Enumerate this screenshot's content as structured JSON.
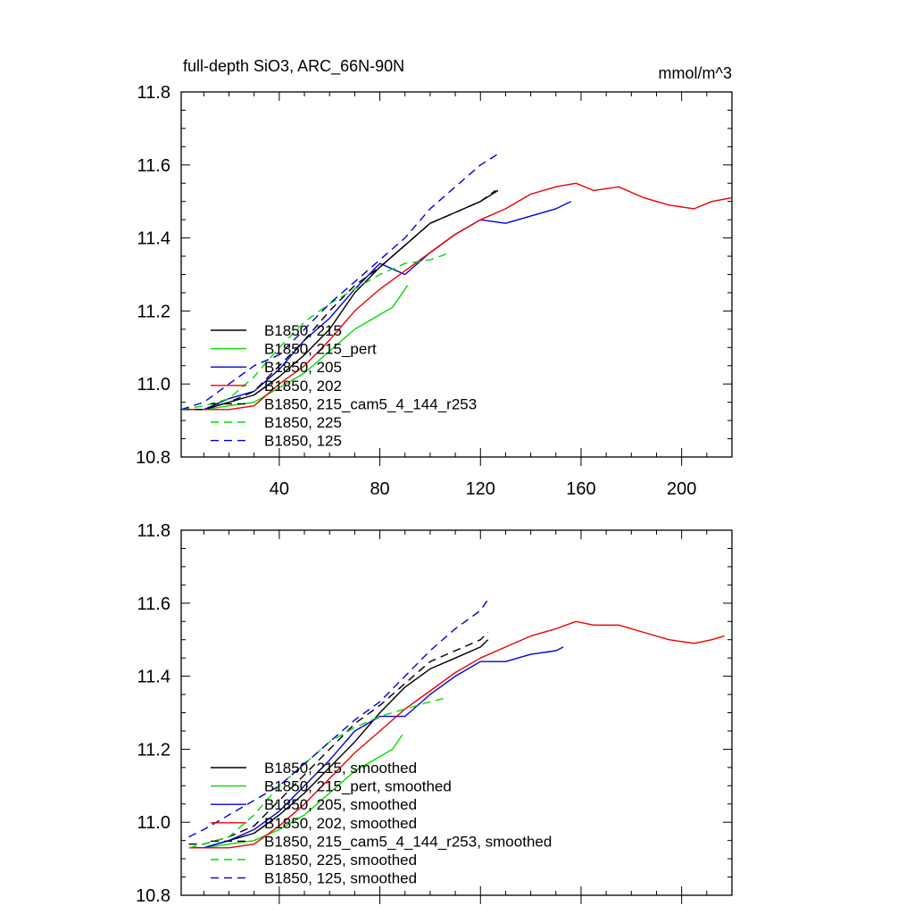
{
  "figure": {
    "title": "full-depth SiO3, ARC_66N-90N",
    "units": "mmol/m^3"
  },
  "chart_data": [
    {
      "type": "line",
      "title": "full-depth SiO3, ARC_66N-90N",
      "units": "mmol/m^3",
      "xlabel": "",
      "ylabel": "",
      "xlim": [
        1,
        220
      ],
      "ylim": [
        10.8,
        11.8
      ],
      "xticks": [
        40,
        80,
        120,
        160,
        200
      ],
      "yticks": [
        10.8,
        11.0,
        11.2,
        11.4,
        11.6,
        11.8
      ],
      "show_x_tick_labels": true,
      "grid": false,
      "legend_position": "lower-left",
      "series": [
        {
          "name": "B1850, 215",
          "color": "#000000",
          "dash": false,
          "x": [
            1,
            10,
            20,
            30,
            40,
            50,
            60,
            70,
            80,
            90,
            100,
            110,
            120,
            127
          ],
          "y": [
            10.93,
            10.93,
            10.95,
            10.97,
            11.02,
            11.08,
            11.15,
            11.25,
            11.32,
            11.38,
            11.44,
            11.47,
            11.5,
            11.53
          ]
        },
        {
          "name": "B1850, 215_pert",
          "color": "#00dd00",
          "dash": false,
          "x": [
            1,
            10,
            20,
            30,
            40,
            50,
            60,
            70,
            80,
            85,
            91
          ],
          "y": [
            10.93,
            10.93,
            10.94,
            10.95,
            10.99,
            11.03,
            11.09,
            11.15,
            11.19,
            11.21,
            11.27
          ]
        },
        {
          "name": "B1850, 205",
          "color": "#0000dd",
          "dash": false,
          "x": [
            1,
            10,
            20,
            30,
            40,
            50,
            60,
            70,
            80,
            90,
            100,
            110,
            120,
            130,
            140,
            150,
            156
          ],
          "y": [
            10.93,
            10.93,
            10.96,
            10.98,
            11.04,
            11.12,
            11.18,
            11.26,
            11.33,
            11.3,
            11.36,
            11.41,
            11.45,
            11.44,
            11.46,
            11.48,
            11.5
          ]
        },
        {
          "name": "B1850, 202",
          "color": "#ee0000",
          "dash": false,
          "x": [
            1,
            10,
            20,
            30,
            40,
            50,
            60,
            70,
            80,
            90,
            100,
            110,
            120,
            130,
            140,
            150,
            158,
            165,
            175,
            185,
            195,
            205,
            212,
            220
          ],
          "y": [
            10.93,
            10.93,
            10.93,
            10.94,
            11.0,
            11.05,
            11.12,
            11.2,
            11.26,
            11.31,
            11.36,
            11.41,
            11.45,
            11.48,
            11.52,
            11.54,
            11.55,
            11.53,
            11.54,
            11.51,
            11.49,
            11.48,
            11.5,
            11.51
          ]
        },
        {
          "name": "B1850, 215_cam5_4_144_r253",
          "color": "#000000",
          "dash": true,
          "x": [
            1,
            10,
            20,
            30,
            40,
            50,
            60,
            70,
            80,
            90,
            100,
            110,
            120,
            126
          ],
          "y": [
            10.93,
            10.93,
            10.95,
            10.98,
            11.05,
            11.12,
            11.2,
            11.27,
            11.32,
            11.38,
            11.44,
            11.47,
            11.5,
            11.53
          ]
        },
        {
          "name": "B1850, 225",
          "color": "#00dd00",
          "dash": true,
          "x": [
            1,
            10,
            20,
            30,
            40,
            50,
            60,
            70,
            80,
            90,
            100,
            108
          ],
          "y": [
            10.93,
            10.94,
            10.96,
            11.02,
            11.1,
            11.17,
            11.22,
            11.26,
            11.3,
            11.33,
            11.34,
            11.36
          ]
        },
        {
          "name": "B1850, 125",
          "color": "#0000dd",
          "dash": true,
          "x": [
            1,
            10,
            20,
            30,
            40,
            50,
            60,
            70,
            80,
            90,
            100,
            110,
            120,
            127
          ],
          "y": [
            10.93,
            10.95,
            11.0,
            11.05,
            11.08,
            11.15,
            11.22,
            11.28,
            11.34,
            11.4,
            11.48,
            11.54,
            11.6,
            11.63
          ]
        }
      ]
    },
    {
      "type": "line",
      "xlabel": "",
      "ylabel": "",
      "xlim": [
        1,
        220
      ],
      "ylim": [
        10.8,
        11.8
      ],
      "xticks": [
        40,
        80,
        120,
        160,
        200
      ],
      "yticks": [
        10.8,
        11.0,
        11.2,
        11.4,
        11.6,
        11.8
      ],
      "show_x_tick_labels": false,
      "grid": false,
      "legend_position": "lower-left",
      "series": [
        {
          "name": "B1850, 215, smoothed",
          "color": "#000000",
          "dash": false,
          "x": [
            4,
            10,
            20,
            30,
            40,
            50,
            60,
            70,
            80,
            90,
            100,
            110,
            120,
            123
          ],
          "y": [
            10.93,
            10.93,
            10.95,
            10.97,
            11.02,
            11.08,
            11.15,
            11.22,
            11.3,
            11.37,
            11.42,
            11.45,
            11.48,
            11.5
          ]
        },
        {
          "name": "B1850, 215_pert, smoothed",
          "color": "#00dd00",
          "dash": false,
          "x": [
            4,
            10,
            20,
            30,
            40,
            50,
            60,
            70,
            80,
            85,
            89
          ],
          "y": [
            10.93,
            10.93,
            10.94,
            10.95,
            10.98,
            11.02,
            11.08,
            11.14,
            11.18,
            11.2,
            11.24
          ]
        },
        {
          "name": "B1850, 205, smoothed",
          "color": "#0000dd",
          "dash": false,
          "x": [
            4,
            10,
            20,
            30,
            40,
            50,
            60,
            70,
            80,
            90,
            100,
            110,
            120,
            130,
            140,
            150,
            153
          ],
          "y": [
            10.93,
            10.93,
            10.95,
            10.98,
            11.03,
            11.1,
            11.17,
            11.25,
            11.29,
            11.29,
            11.35,
            11.4,
            11.44,
            11.44,
            11.46,
            11.47,
            11.48
          ]
        },
        {
          "name": "B1850, 202, smoothed",
          "color": "#ee0000",
          "dash": false,
          "x": [
            4,
            10,
            20,
            30,
            40,
            50,
            60,
            70,
            80,
            90,
            100,
            110,
            120,
            130,
            140,
            150,
            158,
            165,
            175,
            185,
            195,
            205,
            212,
            217
          ],
          "y": [
            10.93,
            10.93,
            10.93,
            10.94,
            10.99,
            11.05,
            11.12,
            11.19,
            11.25,
            11.31,
            11.36,
            11.41,
            11.45,
            11.48,
            11.51,
            11.53,
            11.55,
            11.54,
            11.54,
            11.52,
            11.5,
            11.49,
            11.5,
            11.51
          ]
        },
        {
          "name": "B1850, 215_cam5_4_144_r253, smoothed",
          "color": "#000000",
          "dash": true,
          "x": [
            4,
            10,
            20,
            30,
            40,
            50,
            60,
            70,
            80,
            90,
            100,
            110,
            120,
            123
          ],
          "y": [
            10.94,
            10.94,
            10.96,
            10.99,
            11.06,
            11.13,
            11.2,
            11.27,
            11.32,
            11.38,
            11.44,
            11.47,
            11.5,
            11.52
          ]
        },
        {
          "name": "B1850, 225, smoothed",
          "color": "#00dd00",
          "dash": true,
          "x": [
            4,
            10,
            20,
            30,
            40,
            50,
            60,
            70,
            80,
            90,
            100,
            106
          ],
          "y": [
            10.93,
            10.94,
            10.96,
            11.02,
            11.1,
            11.16,
            11.22,
            11.26,
            11.29,
            11.31,
            11.33,
            11.34
          ]
        },
        {
          "name": "B1850, 125, smoothed",
          "color": "#0000dd",
          "dash": true,
          "x": [
            4,
            10,
            20,
            30,
            40,
            50,
            60,
            70,
            80,
            90,
            100,
            110,
            120,
            123
          ],
          "y": [
            10.96,
            10.98,
            11.02,
            11.06,
            11.1,
            11.16,
            11.22,
            11.28,
            11.33,
            11.4,
            11.47,
            11.53,
            11.58,
            11.61
          ]
        }
      ]
    }
  ]
}
